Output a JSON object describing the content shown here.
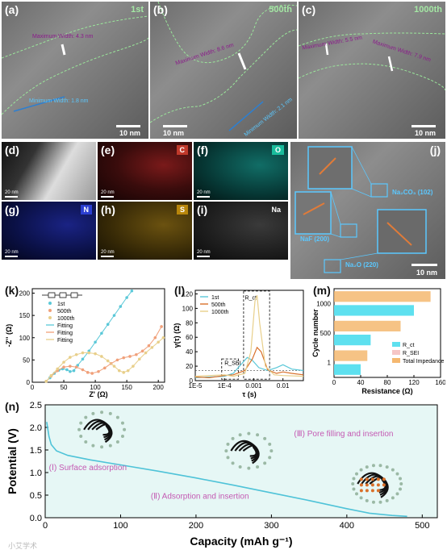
{
  "tem_top": [
    {
      "label": "(a)",
      "cycle": "1st",
      "max": "Maximum Width: 4.3 nm",
      "min": "Minimum Width: 1.8 nm",
      "scale": "10 nm"
    },
    {
      "label": "(b)",
      "cycle": "500th",
      "max": "Maximum Width: 8.6 nm",
      "min": "Minimum Width: 2.1 nm",
      "scale": "10 nm"
    },
    {
      "label": "(c)",
      "cycle": "1000th",
      "max1": "Maximum Width: 5.5 nm",
      "max2": "Maximum Width: 7.9 nm",
      "scale": "10 nm"
    }
  ],
  "eds": [
    {
      "label": "(d)",
      "element": "",
      "scale": "20 nm",
      "color": "#ffffff"
    },
    {
      "label": "(e)",
      "element": "C",
      "scale": "20 nm",
      "color": "#c0392b"
    },
    {
      "label": "(f)",
      "element": "O",
      "scale": "20 nm",
      "color": "#1abc9c"
    },
    {
      "label": "(g)",
      "element": "N",
      "scale": "20 nm",
      "color": "#2b3fd1"
    },
    {
      "label": "(h)",
      "element": "S",
      "scale": "20 nm",
      "color": "#d4a017"
    },
    {
      "label": "(i)",
      "element": "Na",
      "scale": "20 nm",
      "color": "#cccccc"
    }
  ],
  "hrtem_j": {
    "label": "(j)",
    "phases": [
      "Na₂CO₃ (102)",
      "NaF (200)",
      "Na₂O (220)"
    ],
    "scale": "10 nm"
  },
  "panel_k": {
    "label": "(k)",
    "chart_data": {
      "type": "scatter",
      "xlabel": "Z' (Ω)",
      "ylabel": "-Z'' (Ω)",
      "xlim": [
        0,
        210
      ],
      "ylim": [
        0,
        210
      ],
      "xticks": [
        0,
        50,
        100,
        150,
        200
      ],
      "yticks": [
        0,
        50,
        100,
        150,
        200
      ],
      "legend": [
        "1st",
        "500th",
        "1000th",
        "Fitting",
        "Fitting",
        "Fitting"
      ],
      "series": [
        {
          "name": "1st",
          "color": "#5bc8d8",
          "points": [
            [
              22,
              2
            ],
            [
              28,
              10
            ],
            [
              35,
              20
            ],
            [
              42,
              27
            ],
            [
              48,
              30
            ],
            [
              55,
              28
            ],
            [
              60,
              24
            ],
            [
              66,
              26
            ],
            [
              72,
              38
            ],
            [
              80,
              52
            ],
            [
              90,
              70
            ],
            [
              100,
              90
            ],
            [
              110,
              110
            ],
            [
              120,
              130
            ],
            [
              130,
              150
            ],
            [
              140,
              170
            ],
            [
              150,
              190
            ],
            [
              158,
              205
            ]
          ]
        },
        {
          "name": "500th",
          "color": "#f0a07a",
          "points": [
            [
              22,
              2
            ],
            [
              30,
              14
            ],
            [
              40,
              26
            ],
            [
              50,
              34
            ],
            [
              60,
              36
            ],
            [
              70,
              34
            ],
            [
              80,
              28
            ],
            [
              88,
              22
            ],
            [
              95,
              20
            ],
            [
              105,
              24
            ],
            [
              115,
              32
            ],
            [
              125,
              42
            ],
            [
              135,
              50
            ],
            [
              145,
              55
            ],
            [
              155,
              58
            ],
            [
              165,
              62
            ],
            [
              175,
              70
            ],
            [
              185,
              82
            ],
            [
              195,
              100
            ],
            [
              205,
              125
            ]
          ]
        },
        {
          "name": "1000th",
          "color": "#e8cf8a",
          "points": [
            [
              22,
              2
            ],
            [
              30,
              15
            ],
            [
              40,
              30
            ],
            [
              50,
              45
            ],
            [
              60,
              56
            ],
            [
              70,
              62
            ],
            [
              80,
              66
            ],
            [
              90,
              66
            ],
            [
              100,
              64
            ],
            [
              110,
              58
            ],
            [
              120,
              48
            ],
            [
              130,
              36
            ],
            [
              138,
              26
            ],
            [
              145,
              22
            ],
            [
              152,
              26
            ],
            [
              160,
              36
            ],
            [
              170,
              52
            ],
            [
              180,
              66
            ],
            [
              190,
              78
            ],
            [
              200,
              90
            ],
            [
              208,
              100
            ]
          ]
        }
      ]
    }
  },
  "panel_l": {
    "label": "(l)",
    "chart_data": {
      "type": "line",
      "xlabel": "τ (s)",
      "ylabel": "γ(τ) (Ω)",
      "xscale": "log",
      "xlim": [
        1e-05,
        0.05
      ],
      "ylim": [
        0,
        125
      ],
      "xtick_labels": [
        "1E-5",
        "1E-4",
        "0.001",
        "0.01"
      ],
      "yticks": [
        0,
        20,
        40,
        60,
        80,
        100,
        120
      ],
      "annotations": [
        "R_SEI",
        "R_ct"
      ],
      "series": [
        {
          "name": "1st",
          "color": "#5bc8d8",
          "points": [
            [
              1e-05,
              4
            ],
            [
              3e-05,
              5
            ],
            [
              0.0001,
              6
            ],
            [
              0.0002,
              10
            ],
            [
              0.0004,
              24
            ],
            [
              0.0006,
              32
            ],
            [
              0.0009,
              28
            ],
            [
              0.0015,
              18
            ],
            [
              0.003,
              14
            ],
            [
              0.006,
              18
            ],
            [
              0.01,
              22
            ],
            [
              0.02,
              16
            ],
            [
              0.05,
              14
            ]
          ]
        },
        {
          "name": "500th",
          "color": "#d9702a",
          "points": [
            [
              1e-05,
              5
            ],
            [
              3e-05,
              4
            ],
            [
              0.0001,
              7
            ],
            [
              0.0002,
              8
            ],
            [
              0.0005,
              14
            ],
            [
              0.0009,
              30
            ],
            [
              0.0013,
              46
            ],
            [
              0.0018,
              40
            ],
            [
              0.003,
              15
            ],
            [
              0.006,
              10
            ],
            [
              0.01,
              12
            ],
            [
              0.02,
              10
            ],
            [
              0.05,
              8
            ]
          ]
        },
        {
          "name": "1000th",
          "color": "#e8cf8a",
          "points": [
            [
              1e-05,
              6
            ],
            [
              3e-05,
              7
            ],
            [
              0.0001,
              8
            ],
            [
              0.0002,
              6
            ],
            [
              0.0005,
              10
            ],
            [
              0.0008,
              40
            ],
            [
              0.0011,
              110
            ],
            [
              0.0013,
              118
            ],
            [
              0.0016,
              80
            ],
            [
              0.0025,
              20
            ],
            [
              0.005,
              8
            ],
            [
              0.01,
              7
            ],
            [
              0.05,
              6
            ]
          ]
        }
      ]
    }
  },
  "panel_m": {
    "label": "(m)",
    "chart_data": {
      "type": "bar",
      "orientation": "horizontal",
      "xlabel": "Resistance (Ω)",
      "ylabel": "Cycle number",
      "xlim": [
        0,
        160
      ],
      "xticks": [
        0,
        40,
        80,
        120,
        160
      ],
      "categories": [
        "1",
        "500",
        "1000"
      ],
      "legend": [
        "R_ct",
        "R_SEI",
        "Total Impedance"
      ],
      "series": [
        {
          "name": "R_ct",
          "color": "#5ee0ef",
          "values": [
            40,
            55,
            120
          ]
        },
        {
          "name": "R_SEI",
          "color": "#f6c6c6",
          "values": [
            50,
            100,
            145
          ]
        },
        {
          "name": "Total Impedance",
          "color": "#f5b870",
          "values": [
            50,
            100,
            145
          ]
        }
      ]
    }
  },
  "panel_n": {
    "label": "(n)",
    "chart_data": {
      "type": "line",
      "xlabel": "Capacity (mAh g⁻¹)",
      "ylabel": "Potential (V)",
      "xlim": [
        0,
        520
      ],
      "ylim": [
        0,
        2.5
      ],
      "xticks": [
        0,
        100,
        200,
        300,
        400,
        500
      ],
      "yticks": [
        0.0,
        0.5,
        1.0,
        1.5,
        2.0,
        2.5
      ],
      "stages": [
        "(Ⅰ) Surface adsorption",
        "(Ⅱ) Adsorption and insertion",
        "(Ⅲ) Pore filling and insertion"
      ],
      "series": [
        {
          "name": "",
          "points": [
            [
              2,
              2.12
            ],
            [
              5,
              1.8
            ],
            [
              8,
              1.62
            ],
            [
              15,
              1.48
            ],
            [
              30,
              1.38
            ],
            [
              60,
              1.28
            ],
            [
              100,
              1.17
            ],
            [
              150,
              1.03
            ],
            [
              200,
              0.88
            ],
            [
              250,
              0.72
            ],
            [
              300,
              0.55
            ],
            [
              350,
              0.38
            ],
            [
              400,
              0.2
            ],
            [
              430,
              0.1
            ],
            [
              460,
              0.05
            ],
            [
              480,
              0.03
            ]
          ]
        }
      ]
    }
  },
  "watermark": "小艾学术"
}
